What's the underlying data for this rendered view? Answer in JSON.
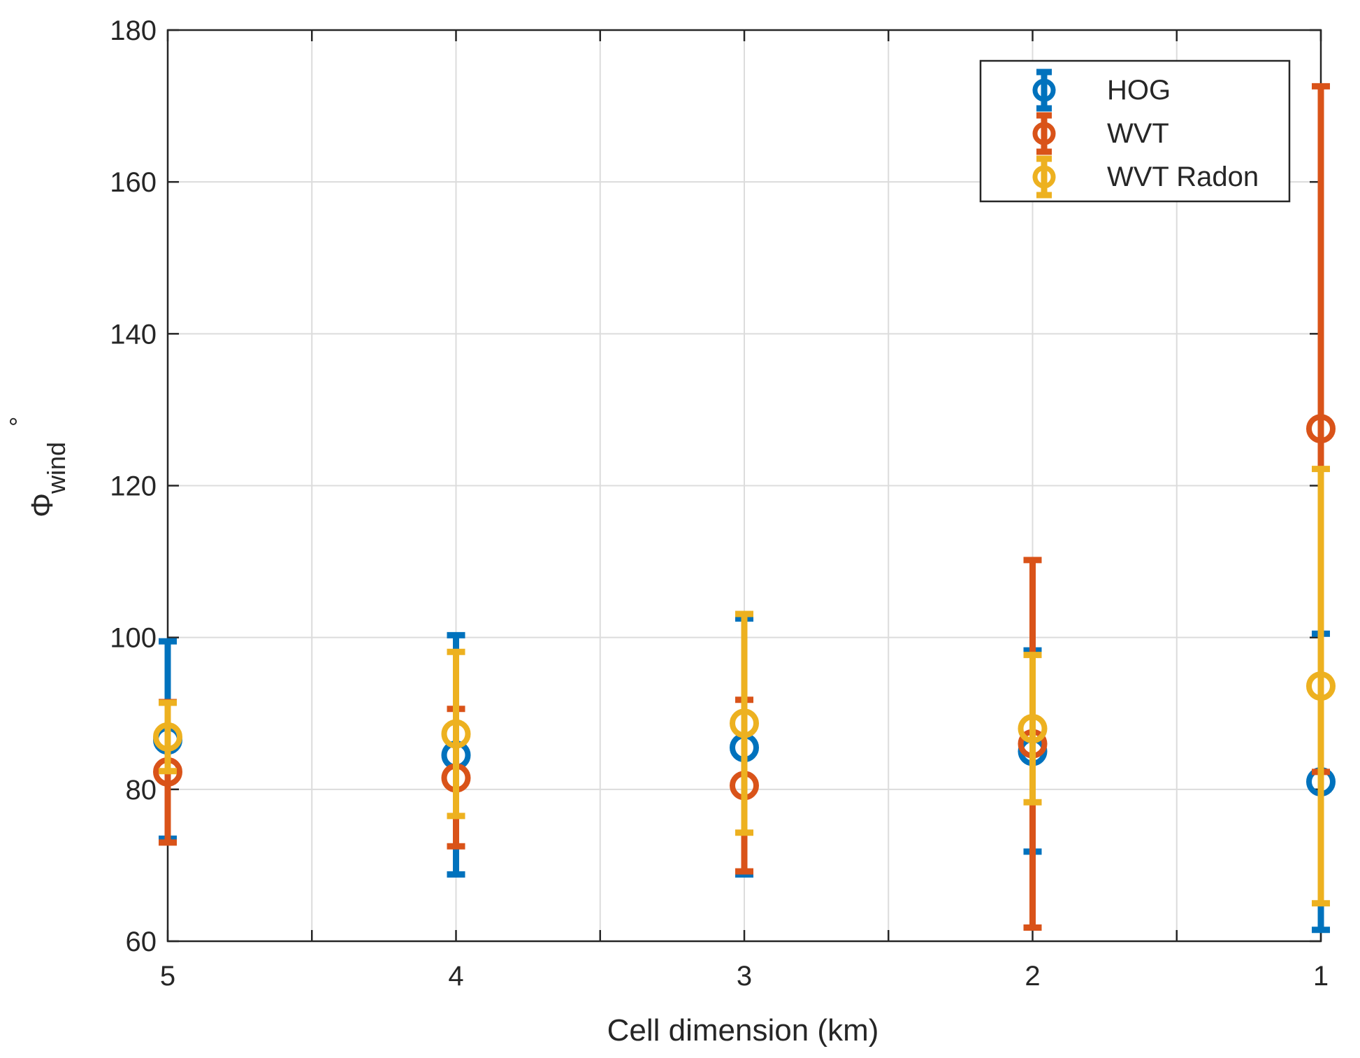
{
  "chart_data": {
    "type": "errorbar",
    "xlabel": "Cell dimension (km)",
    "ylabel_main": "Φ",
    "ylabel_sub": "wind",
    "ylabel_unit": "°",
    "x_direction": "reversed",
    "xlim": [
      1,
      5
    ],
    "ylim": [
      60,
      180
    ],
    "xticks": [
      5,
      4,
      3,
      2,
      1
    ],
    "yticks": [
      60,
      80,
      100,
      120,
      140,
      160,
      180
    ],
    "grid": true,
    "legend_position": "top-right",
    "series": [
      {
        "name": "HOG",
        "color": "#0072BD",
        "points": [
          {
            "x": 5,
            "y": 86.5,
            "low": 73.5,
            "high": 99.5
          },
          {
            "x": 4,
            "y": 84.5,
            "low": 68.8,
            "high": 100.3
          },
          {
            "x": 3,
            "y": 85.5,
            "low": 68.8,
            "high": 102.5
          },
          {
            "x": 2,
            "y": 85.0,
            "low": 71.8,
            "high": 98.3
          },
          {
            "x": 1,
            "y": 81.0,
            "low": 61.5,
            "high": 100.5
          }
        ]
      },
      {
        "name": "WVT",
        "color": "#D95319",
        "points": [
          {
            "x": 5,
            "y": 82.3,
            "low": 73.0,
            "high": 91.5
          },
          {
            "x": 4,
            "y": 81.5,
            "low": 72.5,
            "high": 90.6
          },
          {
            "x": 3,
            "y": 80.5,
            "low": 69.2,
            "high": 91.8
          },
          {
            "x": 2,
            "y": 86.0,
            "low": 61.8,
            "high": 110.2
          },
          {
            "x": 1,
            "y": 127.5,
            "low": 82.3,
            "high": 172.6
          }
        ]
      },
      {
        "name": "WVT Radon",
        "color": "#EDB120",
        "points": [
          {
            "x": 5,
            "y": 86.9,
            "low": 82.4,
            "high": 91.4
          },
          {
            "x": 4,
            "y": 87.3,
            "low": 76.5,
            "high": 98.1
          },
          {
            "x": 3,
            "y": 88.7,
            "low": 74.3,
            "high": 103.1
          },
          {
            "x": 2,
            "y": 88.0,
            "low": 78.3,
            "high": 97.7
          },
          {
            "x": 1,
            "y": 93.6,
            "low": 65.0,
            "high": 122.2
          }
        ]
      }
    ]
  }
}
